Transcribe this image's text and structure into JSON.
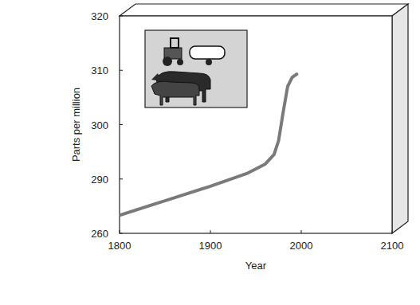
{
  "chart_data": {
    "type": "line",
    "x_label": "Year",
    "y_label": "Parts per million",
    "x": [
      1800,
      1850,
      1900,
      1940,
      1960,
      1970,
      1975,
      1980,
      1985,
      1990,
      1995
    ],
    "values": [
      270,
      278,
      286,
      291,
      292.7,
      294.5,
      297,
      302.2,
      307,
      308.7,
      309.3
    ],
    "color": "#7a7a7a",
    "xlim": [
      1800,
      2100
    ],
    "xticks": [
      1800,
      1900,
      2000,
      2100
    ],
    "ylim": [
      260,
      320
    ],
    "yticks": [
      260,
      290,
      300,
      310,
      320
    ],
    "grid": false
  }
}
